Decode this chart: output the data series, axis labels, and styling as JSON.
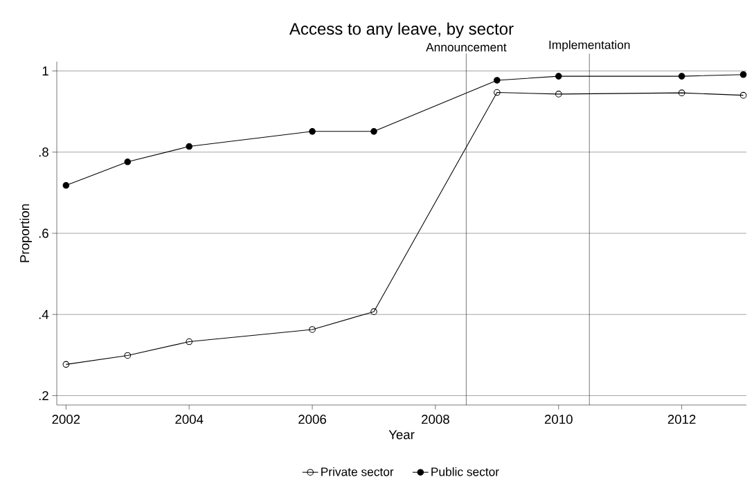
{
  "chart_data": {
    "type": "line",
    "title": "Access to any leave, by sector",
    "xlabel": "Year",
    "ylabel": "Proportion",
    "x": [
      2002,
      2003,
      2004,
      2006,
      2007,
      2009,
      2010,
      2012,
      2013
    ],
    "series": [
      {
        "name": "Private sector",
        "color": "#000000",
        "marker": "open circle",
        "values": [
          0.277,
          0.299,
          0.333,
          0.363,
          0.407,
          0.947,
          0.943,
          0.946,
          0.94
        ]
      },
      {
        "name": "Public sector",
        "color": "#000000",
        "marker": "circle",
        "values": [
          0.718,
          0.776,
          0.814,
          0.851,
          0.851,
          0.977,
          0.987,
          0.987,
          0.991
        ]
      }
    ],
    "xlim": [
      2001.85,
      2013.05
    ],
    "ylim": [
      0.177,
      1.023
    ],
    "xticks": [
      2002,
      2004,
      2006,
      2008,
      2010,
      2012
    ],
    "yticks": [
      {
        "value": 0.2,
        "label": ".2"
      },
      {
        "value": 0.4,
        "label": ".4"
      },
      {
        "value": 0.6,
        "label": ".6"
      },
      {
        "value": 0.8,
        "label": ".8"
      },
      {
        "value": 1,
        "label": "1"
      }
    ],
    "ref_lines": [
      {
        "axis": "x",
        "value": 2008.5,
        "label": "Announcement",
        "color": "#000000"
      },
      {
        "axis": "x",
        "value": 2010.5,
        "label": "Implementation",
        "color": "#000000"
      }
    ],
    "grid": "y",
    "legend": "bottom",
    "line_style": "solid"
  }
}
